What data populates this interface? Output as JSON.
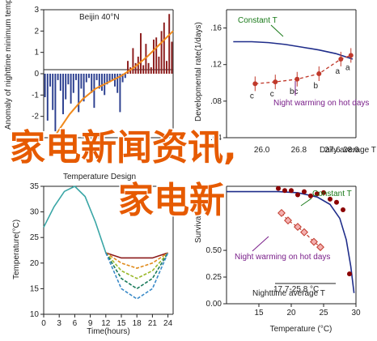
{
  "colors": {
    "bar_red": "#8b1a1a",
    "bar_blue": "#2a3e8f",
    "orange": "#f08a1c",
    "crimson": "#c0392b",
    "dark_red": "#8b0000",
    "navy": "#1f2d8a",
    "green": "#1a7a1a",
    "purple": "#7a1f8a",
    "overlay": "#e65a00"
  },
  "overlay": {
    "line1": "家电新闻资讯,",
    "line2": "家电新"
  },
  "chart_data": [
    {
      "id": "panel-a",
      "type": "bar",
      "title": "Beijin 40°N",
      "ylabel": "Anomaly of nighttime minimum temperature on hot days",
      "ylim": [
        -3,
        3
      ],
      "yticks": [
        -3,
        -2,
        -1,
        0,
        1,
        2,
        3
      ],
      "xlim": [
        1960,
        2010
      ],
      "values": [
        -1.1,
        -2.2,
        -0.6,
        -1.7,
        -2.7,
        -0.3,
        -0.8,
        -1.9,
        -1.2,
        -0.5,
        -1.4,
        -0.9,
        -0.3,
        -1.8,
        -0.7,
        -1.3,
        -0.4,
        -0.2,
        -0.9,
        -1.6,
        -0.3,
        -0.7,
        -0.8,
        -1.0,
        -0.5,
        -0.4,
        -0.3,
        -0.6,
        -0.9,
        -1.8,
        -0.4,
        -0.2,
        0.6,
        0.3,
        1.2,
        0.5,
        0.8,
        1.9,
        0.4,
        1.4,
        0.5,
        0.3,
        1.6,
        1.7,
        0.8,
        2.0,
        2.4,
        0.6,
        2.8,
        1.5
      ],
      "trend": {
        "x": [
          1965,
          1970,
          1975,
          1980,
          1985,
          1990,
          1995,
          2000,
          2005,
          2010
        ],
        "y": [
          -2.8,
          -1.9,
          -1.2,
          -0.7,
          -0.4,
          -0.1,
          0.3,
          0.8,
          1.4,
          2.0
        ]
      }
    },
    {
      "id": "panel-b",
      "type": "scatter",
      "ylabel": "Developmental rate(1/days)",
      "xlabel": "Daily average T (°C)",
      "ylim": [
        0.04,
        0.18
      ],
      "yticks": [
        ".04",
        ".08",
        ".12",
        ".16"
      ],
      "xticks": [
        "26.0",
        "26.8",
        "27.6",
        "28.6"
      ],
      "points": [
        {
          "label": "c",
          "x": 23.2,
          "y": 0.099
        },
        {
          "label": "c",
          "x": 24.4,
          "y": 0.101
        },
        {
          "label": "bc",
          "x": 25.7,
          "y": 0.104
        },
        {
          "label": "b",
          "x": 27.0,
          "y": 0.11
        },
        {
          "label": "a",
          "x": 28.3,
          "y": 0.126
        },
        {
          "label": "a",
          "x": 28.9,
          "y": 0.13
        }
      ],
      "constant_curve": {
        "x": [
          21.9,
          23.0,
          24.0,
          25.0,
          26.0,
          27.0,
          28.0,
          29.0
        ],
        "y": [
          0.145,
          0.145,
          0.144,
          0.142,
          0.139,
          0.136,
          0.132,
          0.126
        ]
      },
      "annotations": {
        "constant": "Constant T",
        "warming": "Night warming on hot days"
      }
    },
    {
      "id": "panel-c",
      "type": "line",
      "title": "Temperature Design",
      "ylabel": "Temperature(°C)",
      "xlabel": "Time(hours)",
      "ylim": [
        10,
        35
      ],
      "yticks": [
        10,
        15,
        20,
        25,
        30,
        35
      ],
      "xticks": [
        0,
        3,
        6,
        9,
        12,
        15,
        18,
        21,
        24
      ],
      "series": [
        {
          "key": "day",
          "x": [
            0,
            2,
            4,
            6,
            8,
            10,
            12
          ],
          "values": [
            27,
            31,
            34,
            35,
            33,
            28,
            22
          ]
        },
        {
          "key": "night1",
          "x": [
            12,
            15,
            18,
            21,
            24
          ],
          "values": [
            22,
            21,
            21,
            21,
            22
          ]
        },
        {
          "key": "night2",
          "x": [
            12,
            15,
            18,
            21,
            24
          ],
          "values": [
            22,
            20,
            19,
            20,
            22
          ]
        },
        {
          "key": "night3",
          "x": [
            12,
            15,
            18,
            21,
            24
          ],
          "values": [
            22,
            18.5,
            17,
            18.5,
            22
          ]
        },
        {
          "key": "night4",
          "x": [
            12,
            15,
            18,
            21,
            24
          ],
          "values": [
            22,
            17,
            15,
            17,
            22
          ]
        },
        {
          "key": "night5",
          "x": [
            12,
            15,
            18,
            21,
            24
          ],
          "values": [
            22,
            15,
            13,
            15,
            22
          ]
        }
      ]
    },
    {
      "id": "panel-d",
      "type": "scatter",
      "ylabel": "Survival rate",
      "xlabel": "Temperature (°C)",
      "ylim": [
        0,
        1
      ],
      "yticks": [
        "0.00",
        "0.25",
        "0.50"
      ],
      "xlim": [
        10,
        30
      ],
      "xticks": [
        15,
        20,
        25,
        30
      ],
      "constant_points": {
        "x": [
          18,
          19,
          20,
          21,
          22,
          23,
          24,
          25,
          26,
          27,
          28,
          29
        ],
        "y": [
          1.08,
          1.06,
          1.06,
          1.02,
          1.05,
          1.01,
          1.03,
          1.04,
          0.98,
          0.95,
          0.88,
          0.28
        ]
      },
      "warming_points": {
        "x": [
          18.5,
          19.5,
          21,
          22,
          23.5,
          24.5
        ],
        "y": [
          0.85,
          0.78,
          0.72,
          0.67,
          0.58,
          0.53
        ]
      },
      "curve": {
        "x": [
          10,
          14,
          18,
          21,
          24,
          26,
          27.5,
          28.5,
          29.2,
          29.7
        ],
        "y": [
          1.05,
          1.05,
          1.05,
          1.04,
          1.0,
          0.93,
          0.8,
          0.6,
          0.35,
          0.1
        ]
      },
      "annotations": {
        "constant": "Constant T",
        "warming": "Night warming on hot days",
        "range": "17.7-25.8 °C",
        "nighttime": "Nighttime average T"
      }
    }
  ]
}
